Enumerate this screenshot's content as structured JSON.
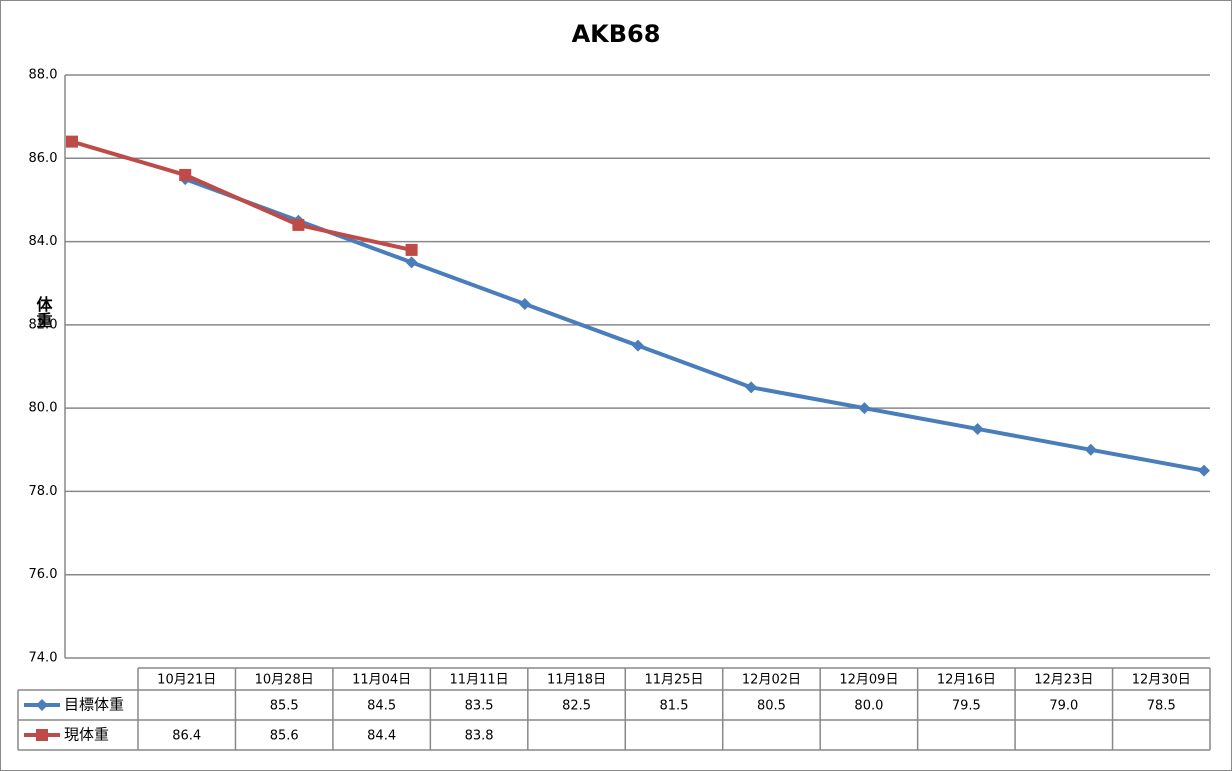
{
  "chart_data": {
    "type": "line",
    "title": "AKB68",
    "y_label": "体重",
    "categories": [
      "10月21日",
      "10月28日",
      "11月04日",
      "11月11日",
      "11月18日",
      "11月25日",
      "12月02日",
      "12月09日",
      "12月16日",
      "12月23日",
      "12月30日"
    ],
    "series": [
      {
        "name": "目標体重",
        "color": "#4a7ebb",
        "marker": "diamond",
        "values": [
          null,
          85.5,
          84.5,
          83.5,
          82.5,
          81.5,
          80.5,
          80.0,
          79.5,
          79.0,
          78.5
        ],
        "value_labels": [
          null,
          "85.5",
          "84.5",
          "83.5",
          "82.5",
          "81.5",
          "80.5",
          "80.0",
          "79.5",
          "79.0",
          "78.5"
        ]
      },
      {
        "name": "現体重",
        "color": "#be4b48",
        "marker": "square",
        "values": [
          86.4,
          85.6,
          84.4,
          83.8,
          null,
          null,
          null,
          null,
          null,
          null,
          null
        ],
        "value_labels": [
          "86.4",
          "85.6",
          "84.4",
          "83.8",
          null,
          null,
          null,
          null,
          null,
          null,
          null
        ]
      }
    ],
    "ylim": [
      74,
      88
    ],
    "yticks": [
      {
        "value": 74,
        "label": "74.0"
      },
      {
        "value": 76,
        "label": "76.0"
      },
      {
        "value": 78,
        "label": "78.0"
      },
      {
        "value": 80,
        "label": "80.0"
      },
      {
        "value": 82,
        "label": "82.0"
      },
      {
        "value": 84,
        "label": "84.0"
      },
      {
        "value": 86,
        "label": "86.0"
      },
      {
        "value": 88,
        "label": "88.0"
      }
    ],
    "grid": true,
    "data_table": true
  }
}
